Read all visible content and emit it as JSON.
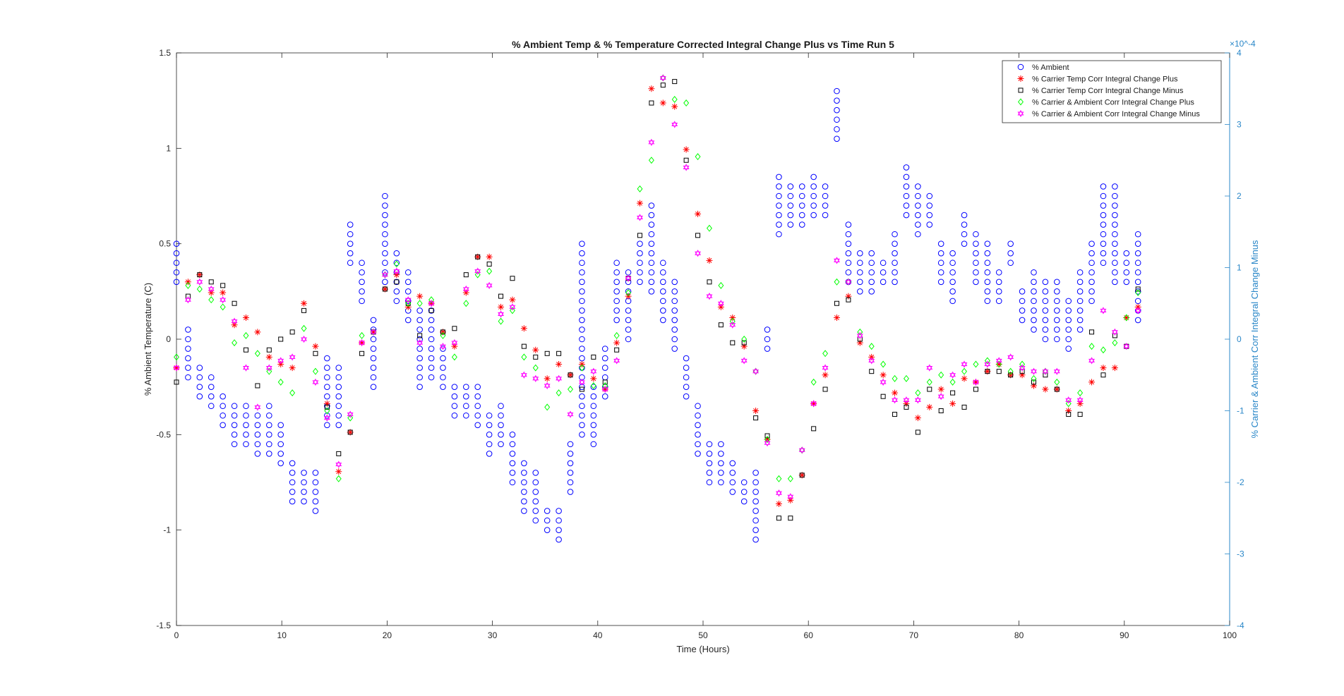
{
  "chart_data": {
    "type": "scatter",
    "title": "% Ambient Temp & % Temperature Corrected Integral Change Plus vs Time Run 5",
    "xlabel": "Time (Hours)",
    "ylabel": "% Ambient Temperature (C)",
    "ylabel_right": "% Carrier & Ambient Corr Integral Change Minus",
    "right_exponent": "×10^-4",
    "xlim": [
      0,
      100
    ],
    "ylim": [
      -1.5,
      1.5
    ],
    "ylim_right": [
      -4,
      4
    ],
    "x_ticks": [
      0,
      10,
      20,
      30,
      40,
      50,
      60,
      70,
      80,
      90,
      100
    ],
    "y_ticks": [
      -1.5,
      -1,
      -0.5,
      0,
      0.5,
      1,
      1.5
    ],
    "y_ticks_right": [
      -4,
      -3,
      -2,
      -1,
      0,
      1,
      2,
      3,
      4
    ],
    "x_tick_labels": [
      "0",
      "10",
      "20",
      "30",
      "40",
      "50",
      "60",
      "70",
      "80",
      "90",
      "100"
    ],
    "y_tick_labels": [
      "-1.5",
      "-1",
      "-0.5",
      "0",
      "0.5",
      "1",
      "1.5"
    ],
    "y_tick_labels_right": [
      "-4",
      "-3",
      "-2",
      "-1",
      "0",
      "1",
      "2",
      "3",
      "4"
    ],
    "legend_position": "top-right",
    "grid": false,
    "colors": {
      "ambient": "#0000ff",
      "carrier_plus": "#ff0000",
      "carrier_minus": "#000000",
      "ca_plus": "#00ff00",
      "ca_minus": "#ff00ff",
      "right_axis": "#2a87c8"
    },
    "ambient_marker_x": [
      0,
      1.1,
      2.2,
      3.3,
      4.4,
      5.5,
      6.6,
      7.7,
      8.8,
      9.9,
      11,
      12.1,
      13.2,
      14.3,
      15.4,
      16.5,
      17.6,
      18.7,
      19.8,
      20.9,
      22,
      23.1,
      24.2,
      25.3,
      26.4,
      27.5,
      28.6,
      29.7,
      30.8,
      31.9,
      33,
      34.1,
      35.2,
      36.3,
      37.4,
      38.5,
      39.6,
      40.7,
      41.8,
      42.9,
      44,
      45.1,
      46.2,
      47.3,
      48.4,
      49.5,
      50.6,
      51.7,
      52.8,
      53.9,
      55,
      56.1,
      57.2,
      58.3,
      59.4,
      60.5,
      61.6,
      62.7,
      63.8,
      64.9,
      66,
      67.1,
      68.2,
      69.3,
      70.4,
      71.5,
      72.6,
      73.7,
      74.8,
      75.9,
      77,
      78.1,
      79.2,
      80.3,
      81.4,
      82.5,
      83.6,
      84.7,
      85.8,
      86.9,
      88,
      89.1,
      90.2,
      91.3
    ],
    "ambient_ranges": [
      [
        0.3,
        0.5
      ],
      [
        -0.2,
        0.05
      ],
      [
        -0.3,
        -0.15
      ],
      [
        -0.35,
        -0.2
      ],
      [
        -0.45,
        -0.3
      ],
      [
        -0.55,
        -0.35
      ],
      [
        -0.55,
        -0.35
      ],
      [
        -0.6,
        -0.4
      ],
      [
        -0.6,
        -0.35
      ],
      [
        -0.65,
        -0.45
      ],
      [
        -0.85,
        -0.65
      ],
      [
        -0.85,
        -0.7
      ],
      [
        -0.9,
        -0.7
      ],
      [
        -0.45,
        -0.1
      ],
      [
        -0.45,
        -0.15
      ],
      [
        0.4,
        0.6
      ],
      [
        0.2,
        0.4
      ],
      [
        -0.25,
        0.1
      ],
      [
        0.3,
        0.75
      ],
      [
        0.2,
        0.45
      ],
      [
        0.1,
        0.35
      ],
      [
        -0.25,
        0.15
      ],
      [
        -0.2,
        0.15
      ],
      [
        -0.25,
        -0.05
      ],
      [
        -0.4,
        -0.25
      ],
      [
        -0.4,
        -0.25
      ],
      [
        -0.45,
        -0.25
      ],
      [
        -0.6,
        -0.4
      ],
      [
        -0.55,
        -0.35
      ],
      [
        -0.75,
        -0.5
      ],
      [
        -0.9,
        -0.65
      ],
      [
        -0.95,
        -0.7
      ],
      [
        -1,
        -0.9
      ],
      [
        -1.05,
        -0.9
      ],
      [
        -0.8,
        -0.55
      ],
      [
        -0.5,
        0.5
      ],
      [
        -0.55,
        -0.25
      ],
      [
        -0.3,
        -0.05
      ],
      [
        0.1,
        0.4
      ],
      [
        0,
        0.35
      ],
      [
        0.3,
        0.5
      ],
      [
        0.25,
        0.7
      ],
      [
        0.1,
        0.4
      ],
      [
        -0.05,
        0.3
      ],
      [
        -0.3,
        -0.1
      ],
      [
        -0.6,
        -0.35
      ],
      [
        -0.75,
        -0.55
      ],
      [
        -0.75,
        -0.55
      ],
      [
        -0.8,
        -0.65
      ],
      [
        -0.85,
        -0.75
      ],
      [
        -1.05,
        -0.7
      ],
      [
        -0.05,
        0.05
      ],
      [
        0.55,
        0.85
      ],
      [
        0.6,
        0.8
      ],
      [
        0.6,
        0.8
      ],
      [
        0.65,
        0.85
      ],
      [
        0.65,
        0.8
      ],
      [
        1.05,
        1.3
      ],
      [
        0.3,
        0.6
      ],
      [
        0.25,
        0.45
      ],
      [
        0.25,
        0.45
      ],
      [
        0.3,
        0.4
      ],
      [
        0.3,
        0.55
      ],
      [
        0.65,
        0.9
      ],
      [
        0.55,
        0.8
      ],
      [
        0.6,
        0.75
      ],
      [
        0.3,
        0.5
      ],
      [
        0.2,
        0.45
      ],
      [
        0.5,
        0.65
      ],
      [
        0.3,
        0.55
      ],
      [
        0.2,
        0.5
      ],
      [
        0.2,
        0.35
      ],
      [
        0.4,
        0.5
      ],
      [
        0.1,
        0.25
      ],
      [
        0.05,
        0.35
      ],
      [
        0,
        0.3
      ],
      [
        0,
        0.3
      ],
      [
        -0.05,
        0.2
      ],
      [
        0.05,
        0.35
      ],
      [
        0.2,
        0.5
      ],
      [
        0.4,
        0.8
      ],
      [
        0.3,
        0.8
      ],
      [
        0.3,
        0.45
      ],
      [
        0.1,
        0.55
      ]
    ],
    "series": [
      {
        "name": "% Ambient",
        "marker": "circle",
        "x": [
          0,
          1.1,
          2.2,
          3.3,
          4.4,
          5.5,
          6.6,
          7.7,
          8.8,
          9.9,
          11,
          12.1,
          13.2,
          14.3,
          15.4,
          16.5,
          17.6,
          18.7,
          19.8,
          20.9,
          22,
          23.1,
          24.2,
          25.3,
          26.4,
          27.5,
          28.6,
          29.7,
          30.8,
          31.9,
          33,
          34.1,
          35.2,
          36.3,
          37.4,
          38.5,
          39.6,
          40.7,
          41.8,
          42.9,
          44,
          45.1,
          46.2,
          47.3,
          48.4,
          49.5,
          50.6,
          51.7,
          52.8,
          53.9,
          55,
          56.1,
          57.2,
          58.3,
          59.4,
          60.5,
          61.6,
          62.7,
          63.8,
          64.9,
          66,
          67.1,
          68.2,
          69.3,
          70.4,
          71.5,
          72.6,
          73.7,
          74.8,
          75.9,
          77,
          78.1,
          79.2,
          80.3,
          81.4,
          82.5,
          83.6,
          84.7,
          85.8,
          86.9,
          88,
          89.1,
          90.2,
          91.3
        ]
      },
      {
        "name": "% Carrier Temp Corr Integral Change Plus",
        "marker": "asterisk",
        "x": [
          0,
          1.1,
          2.2,
          3.3,
          4.4,
          5.5,
          6.6,
          7.7,
          8.8,
          9.9,
          11,
          12.1,
          13.2,
          14.3,
          15.4,
          16.5,
          17.6,
          18.7,
          19.8,
          20.9,
          22,
          23.1,
          24.2,
          25.3,
          26.4,
          27.5,
          28.6,
          29.7,
          30.8,
          31.9,
          33,
          34.1,
          35.2,
          36.3,
          37.4,
          38.5,
          39.6,
          40.7,
          41.8,
          42.9,
          44,
          45.1,
          46.2,
          47.3,
          48.4,
          49.5,
          50.6,
          51.7,
          52.8,
          53.9,
          55,
          56.1,
          57.2,
          58.3,
          59.4,
          60.5,
          61.6,
          62.7,
          63.8,
          64.9,
          66,
          67.1,
          68.2,
          69.3,
          70.4,
          71.5,
          72.6,
          73.7,
          74.8,
          75.9,
          77,
          78.1,
          79.2,
          80.3,
          81.4,
          82.5,
          83.6,
          84.7,
          85.8,
          86.9,
          88,
          89.1,
          90.2,
          91.3
        ],
        "y": [
          -0.4,
          0.8,
          0.9,
          0.65,
          0.65,
          0.2,
          0.3,
          0.1,
          -0.25,
          -0.35,
          -0.4,
          0.5,
          -0.1,
          -0.9,
          -1.85,
          -1.3,
          -0.05,
          0.1,
          0.7,
          0.9,
          0.45,
          0.6,
          0.5,
          0.1,
          -0.1,
          0.65,
          1.15,
          1.15,
          0.45,
          0.55,
          0.15,
          -0.15,
          -0.55,
          -0.35,
          -0.5,
          -0.35,
          -0.55,
          -0.7,
          -0.05,
          0.6,
          1.9,
          3.5,
          3.3,
          3.25,
          2.65,
          1.75,
          1.1,
          0.45,
          0.3,
          -0.1,
          -1,
          -1.4,
          -2.3,
          -2.25,
          -1.9,
          -0.9,
          -0.5,
          0.3,
          0.6,
          -0.05,
          -0.25,
          -0.5,
          -0.75,
          -0.9,
          -1.1,
          -0.95,
          -0.7,
          -0.9,
          -0.55,
          -0.6,
          -0.45,
          -0.35,
          -0.5,
          -0.5,
          -0.65,
          -0.7,
          -0.7,
          -1,
          -0.9,
          -0.6,
          -0.4,
          -0.4,
          0.3,
          0.45
        ]
      },
      {
        "name": "% Carrier Temp Corr Integral Change Minus",
        "marker": "square",
        "x": [
          0,
          1.1,
          2.2,
          3.3,
          4.4,
          5.5,
          6.6,
          7.7,
          8.8,
          9.9,
          11,
          12.1,
          13.2,
          14.3,
          15.4,
          16.5,
          17.6,
          18.7,
          19.8,
          20.9,
          22,
          23.1,
          24.2,
          25.3,
          26.4,
          27.5,
          28.6,
          29.7,
          30.8,
          31.9,
          33,
          34.1,
          35.2,
          36.3,
          37.4,
          38.5,
          39.6,
          40.7,
          41.8,
          42.9,
          44,
          45.1,
          46.2,
          47.3,
          48.4,
          49.5,
          50.6,
          51.7,
          52.8,
          53.9,
          55,
          56.1,
          57.2,
          58.3,
          59.4,
          60.5,
          61.6,
          62.7,
          63.8,
          64.9,
          66,
          67.1,
          68.2,
          69.3,
          70.4,
          71.5,
          72.6,
          73.7,
          74.8,
          75.9,
          77,
          78.1,
          79.2,
          80.3,
          81.4,
          82.5,
          83.6,
          84.7,
          85.8,
          86.9,
          88,
          89.1,
          90.2,
          91.3
        ],
        "y": [
          -0.6,
          0.6,
          0.9,
          0.8,
          0.75,
          0.5,
          -0.15,
          -0.65,
          -0.15,
          0,
          0.1,
          0.4,
          -0.2,
          -0.95,
          -1.6,
          -1.3,
          -0.2,
          0.1,
          0.7,
          0.8,
          0.5,
          0.05,
          0.4,
          0.1,
          0.15,
          0.9,
          1.15,
          1.05,
          0.6,
          0.85,
          -0.1,
          -0.25,
          -0.2,
          -0.2,
          -0.5,
          -0.7,
          -0.25,
          -0.6,
          -0.15,
          0.85,
          1.45,
          3.3,
          3.55,
          3.6,
          2.5,
          1.45,
          0.8,
          0.2,
          -0.05,
          -0.05,
          -1.1,
          -1.35,
          -2.5,
          -2.5,
          -1.9,
          -1.25,
          -0.7,
          0.5,
          0.55,
          0,
          -0.45,
          -0.8,
          -1.05,
          -0.95,
          -1.3,
          -0.7,
          -1,
          -0.75,
          -0.95,
          -0.7,
          -0.45,
          -0.45,
          -0.5,
          -0.45,
          -0.6,
          -0.5,
          -0.7,
          -1.05,
          -1.05,
          0.1,
          -0.5,
          0.05,
          -0.1,
          0.7
        ]
      },
      {
        "name": "% Carrier & Ambient Corr Integral Change Plus",
        "marker": "diamond",
        "x": [
          0,
          1.1,
          2.2,
          3.3,
          4.4,
          5.5,
          6.6,
          7.7,
          8.8,
          9.9,
          11,
          12.1,
          13.2,
          14.3,
          15.4,
          16.5,
          17.6,
          18.7,
          19.8,
          20.9,
          22,
          23.1,
          24.2,
          25.3,
          26.4,
          27.5,
          28.6,
          29.7,
          30.8,
          31.9,
          33,
          34.1,
          35.2,
          36.3,
          37.4,
          38.5,
          39.6,
          40.7,
          41.8,
          42.9,
          44,
          45.1,
          46.2,
          47.3,
          48.4,
          49.5,
          50.6,
          51.7,
          52.8,
          53.9,
          55,
          56.1,
          57.2,
          58.3,
          59.4,
          60.5,
          61.6,
          62.7,
          63.8,
          64.9,
          66,
          67.1,
          68.2,
          69.3,
          70.4,
          71.5,
          72.6,
          73.7,
          74.8,
          75.9,
          77,
          78.1,
          79.2,
          80.3,
          81.4,
          82.5,
          83.6,
          84.7,
          85.8,
          86.9,
          88,
          89.1,
          90.2,
          91.3
        ],
        "y": [
          -0.25,
          0.75,
          0.7,
          0.55,
          0.45,
          -0.05,
          0.05,
          -0.2,
          -0.45,
          -0.6,
          -0.75,
          0.15,
          -0.45,
          -1,
          -1.95,
          -1.1,
          0.05,
          0.1,
          0.9,
          1.05,
          0.5,
          0.5,
          0.55,
          0.05,
          -0.25,
          0.5,
          0.9,
          0.95,
          0.25,
          0.4,
          -0.25,
          -0.4,
          -0.95,
          -0.75,
          -0.7,
          -0.4,
          -0.65,
          -0.65,
          0.05,
          0.65,
          2.1,
          2.5,
          3.65,
          3.35,
          3.3,
          2.55,
          1.55,
          0.75,
          0.25,
          0,
          -0.45,
          -1.4,
          -1.95,
          -1.95,
          -1.55,
          -0.6,
          -0.2,
          0.8,
          0.8,
          0.1,
          -0.1,
          -0.35,
          -0.55,
          -0.55,
          -0.75,
          -0.6,
          -0.5,
          -0.6,
          -0.45,
          -0.35,
          -0.3,
          -0.35,
          -0.45,
          -0.35,
          -0.55,
          -0.45,
          -0.6,
          -0.9,
          -0.75,
          -0.1,
          -0.15,
          -0.05,
          0.3,
          0.65
        ]
      },
      {
        "name": "% Carrier & Ambient Corr Integral Change Minus",
        "marker": "hexagram",
        "x": [
          0,
          1.1,
          2.2,
          3.3,
          4.4,
          5.5,
          6.6,
          7.7,
          8.8,
          9.9,
          11,
          12.1,
          13.2,
          14.3,
          15.4,
          16.5,
          17.6,
          18.7,
          19.8,
          20.9,
          22,
          23.1,
          24.2,
          25.3,
          26.4,
          27.5,
          28.6,
          29.7,
          30.8,
          31.9,
          33,
          34.1,
          35.2,
          36.3,
          37.4,
          38.5,
          39.6,
          40.7,
          41.8,
          42.9,
          44,
          45.1,
          46.2,
          47.3,
          48.4,
          49.5,
          50.6,
          51.7,
          52.8,
          53.9,
          55,
          56.1,
          57.2,
          58.3,
          59.4,
          60.5,
          61.6,
          62.7,
          63.8,
          64.9,
          66,
          67.1,
          68.2,
          69.3,
          70.4,
          71.5,
          72.6,
          73.7,
          74.8,
          75.9,
          77,
          78.1,
          79.2,
          80.3,
          81.4,
          82.5,
          83.6,
          84.7,
          85.8,
          86.9,
          88,
          89.1,
          90.2,
          91.3
        ],
        "y": [
          -0.4,
          0.55,
          0.8,
          0.7,
          0.55,
          0.25,
          -0.4,
          -0.95,
          -0.4,
          -0.3,
          -0.25,
          0,
          -0.6,
          -1.1,
          -1.75,
          -1.05,
          -0.05,
          0.1,
          0.9,
          0.95,
          0.55,
          -0.05,
          0.5,
          -0.1,
          -0.05,
          0.7,
          0.95,
          0.75,
          0.35,
          0.45,
          -0.5,
          -0.55,
          -0.65,
          -0.55,
          -1.05,
          -0.6,
          -0.45,
          -0.7,
          -0.3,
          0.85,
          1.7,
          2.75,
          3.65,
          3.0,
          2.4,
          1.2,
          0.6,
          0.5,
          0.2,
          -0.3,
          -0.45,
          -1.45,
          -2.15,
          -2.2,
          -1.55,
          -0.9,
          -0.4,
          1.1,
          0.8,
          0.05,
          -0.3,
          -0.6,
          -0.85,
          -0.85,
          -0.85,
          -0.4,
          -0.8,
          -0.5,
          -0.35,
          -0.6,
          -0.35,
          -0.3,
          -0.25,
          -0.4,
          -0.45,
          -0.45,
          -0.45,
          -0.85,
          -0.85,
          -0.3,
          0.4,
          0.1,
          -0.1,
          0.4
        ]
      }
    ]
  }
}
